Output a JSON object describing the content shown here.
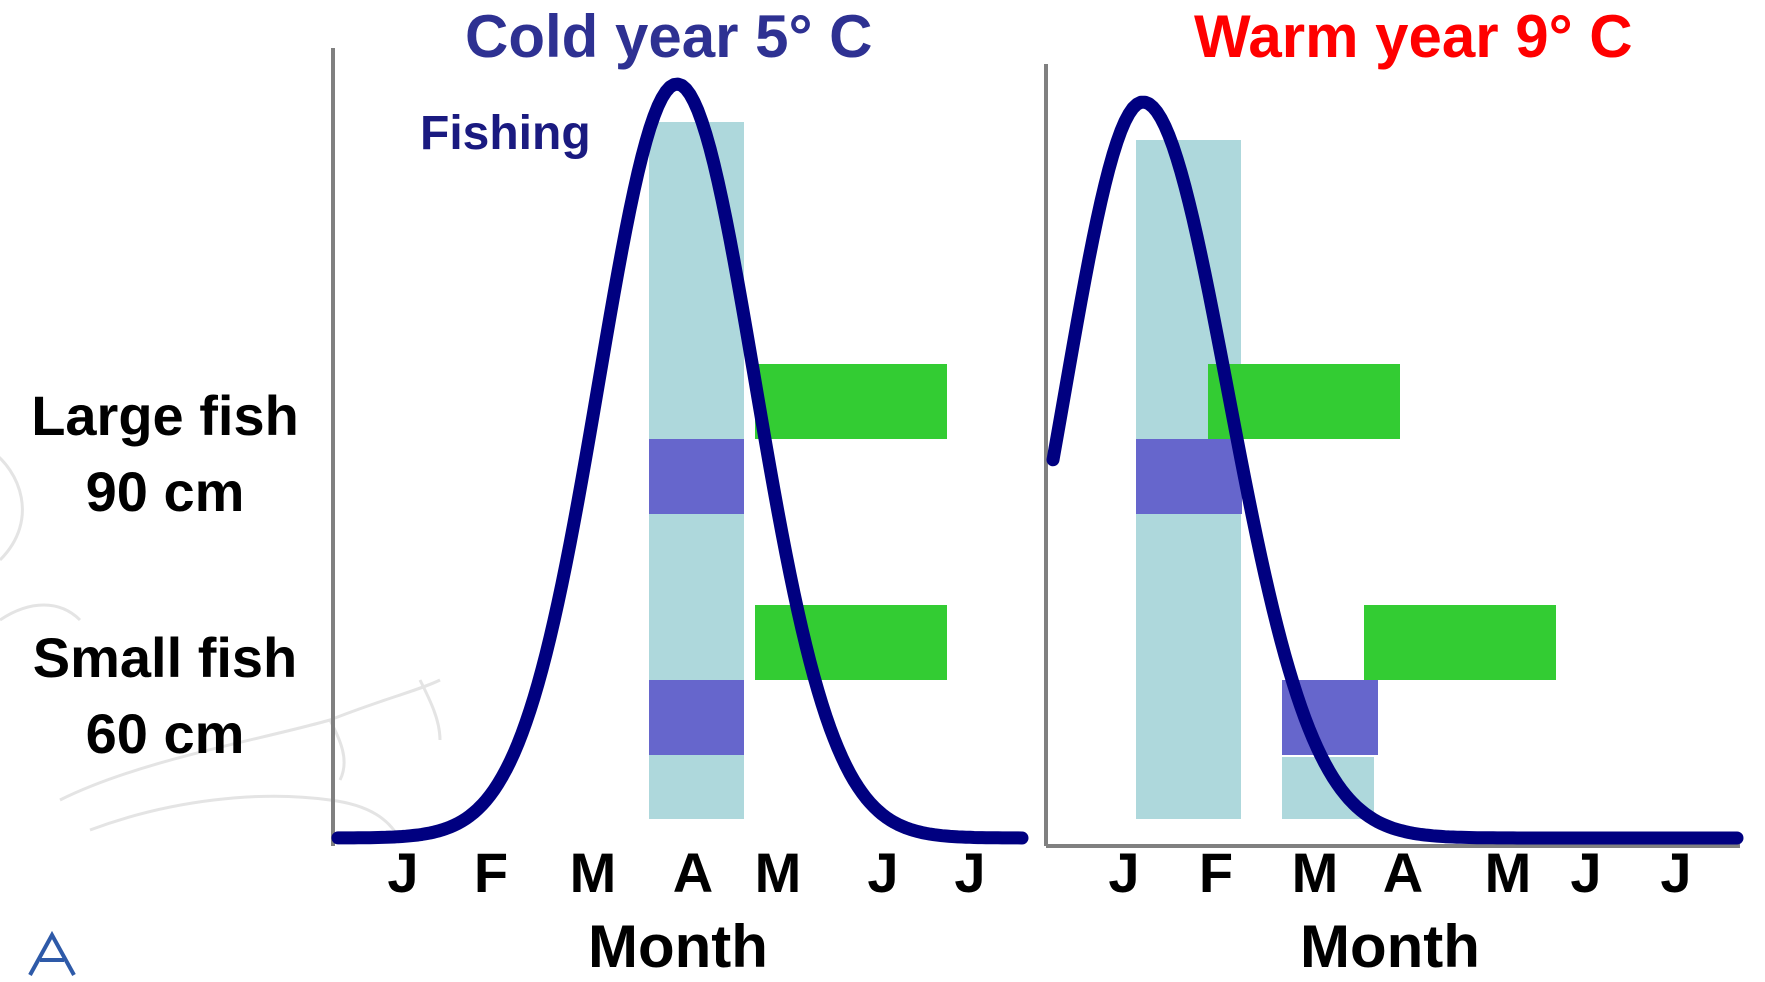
{
  "titles": {
    "cold": "Cold year 5° C",
    "warm": "Warm year 9° C"
  },
  "colors": {
    "cold_title": "#2e3192",
    "warm_title": "#ff0000",
    "curve": "#000080",
    "fishing_band": "#aed8dc",
    "purple_bar": "#6666cc",
    "green_bar": "#33cc33",
    "axis": "#808080"
  },
  "row_labels": {
    "large_line1": "Large fish",
    "large_line2": "90 cm",
    "small_line1": "Small fish",
    "small_line2": "60 cm"
  },
  "fishing_label": "Fishing",
  "x_axis_label": "Month",
  "panels": [
    {
      "id": "cold",
      "months": [
        "J",
        "F",
        "M",
        "A",
        "M",
        "J",
        "J"
      ],
      "curve_peak_month": "A",
      "fishing_period": [
        "A",
        "A"
      ],
      "large_fish": {
        "purple_period": "A",
        "green_period": [
          "M",
          "J"
        ]
      },
      "small_fish": {
        "purple_period": "A",
        "green_period": [
          "M",
          "J"
        ]
      }
    },
    {
      "id": "warm",
      "months": [
        "J",
        "F",
        "M",
        "A",
        "M",
        "J",
        "J"
      ],
      "curve_peak_month": "J",
      "fishing_period": [
        "J",
        "F"
      ],
      "large_fish": {
        "purple_period": "J",
        "green_period": [
          "F",
          "M"
        ]
      },
      "small_fish": {
        "purple_period": "M",
        "green_period": [
          "A",
          "M"
        ]
      }
    }
  ]
}
